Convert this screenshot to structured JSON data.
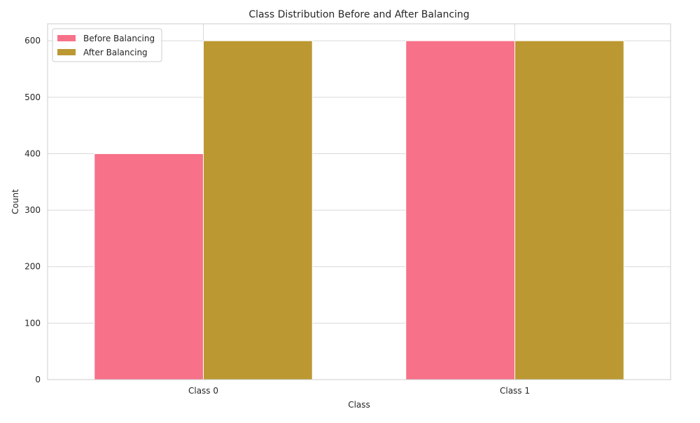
{
  "chart_data": {
    "type": "bar",
    "title": "Class Distribution Before and After Balancing",
    "xlabel": "Class",
    "ylabel": "Count",
    "categories": [
      "Class 0",
      "Class 1"
    ],
    "series": [
      {
        "name": "Before Balancing",
        "values": [
          400,
          600
        ],
        "color": "#f77189"
      },
      {
        "name": "After Balancing",
        "values": [
          600,
          600
        ],
        "color": "#bb9832"
      }
    ],
    "yticks": [
      0,
      100,
      200,
      300,
      400,
      500,
      600
    ],
    "ylim": [
      0,
      630
    ],
    "grid": true,
    "legend_position": "top-left"
  }
}
